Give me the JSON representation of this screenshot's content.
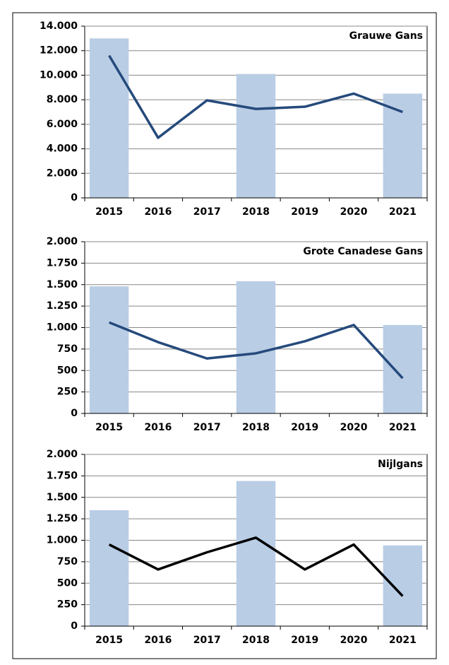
{
  "chart_data": [
    {
      "type": "combo",
      "title": "Grauwe Gans",
      "categories": [
        "2015",
        "2016",
        "2017",
        "2018",
        "2019",
        "2020",
        "2021"
      ],
      "series": [
        {
          "type": "bar",
          "color": "#b9cde5",
          "values": [
            13000,
            null,
            null,
            10100,
            null,
            null,
            8500
          ]
        },
        {
          "type": "line",
          "color": "#254a7c",
          "values": [
            11600,
            4900,
            7950,
            7250,
            7430,
            8500,
            7000
          ]
        }
      ],
      "ylim": [
        0,
        14000
      ],
      "yticks": [
        0,
        {
          "value": 2000,
          "label": "2.000"
        },
        {
          "value": 4000,
          "label": "4.000"
        },
        {
          "value": 6000,
          "label": "6.000"
        },
        {
          "value": 8000,
          "label": "8.000"
        },
        {
          "value": 10000,
          "label": "10.000"
        },
        {
          "value": 12000,
          "label": "12.000"
        },
        {
          "value": 14000,
          "label": "14.000"
        }
      ],
      "grid": true
    },
    {
      "type": "combo",
      "title": "Grote Canadese Gans",
      "categories": [
        "2015",
        "2016",
        "2017",
        "2018",
        "2019",
        "2020",
        "2021"
      ],
      "series": [
        {
          "type": "bar",
          "color": "#b9cde5",
          "values": [
            1480,
            null,
            null,
            1540,
            null,
            null,
            1030
          ]
        },
        {
          "type": "line",
          "color": "#254a7c",
          "values": [
            1060,
            830,
            640,
            700,
            840,
            1030,
            410
          ]
        }
      ],
      "ylim": [
        0,
        2000
      ],
      "yticks": [
        0,
        250,
        500,
        750,
        {
          "value": 1000,
          "label": "1.000"
        },
        {
          "value": 1250,
          "label": "1.250"
        },
        {
          "value": 1500,
          "label": "1.500"
        },
        {
          "value": 1750,
          "label": "1.750"
        },
        {
          "value": 2000,
          "label": "2.000"
        }
      ],
      "grid": true
    },
    {
      "type": "combo",
      "title": "Nijlgans",
      "categories": [
        "2015",
        "2016",
        "2017",
        "2018",
        "2019",
        "2020",
        "2021"
      ],
      "series": [
        {
          "type": "bar",
          "color": "#b9cde5",
          "values": [
            1350,
            null,
            null,
            1690,
            null,
            null,
            940
          ]
        },
        {
          "type": "line",
          "color": "#000000",
          "values": [
            950,
            660,
            860,
            1030,
            660,
            950,
            350
          ]
        }
      ],
      "ylim": [
        0,
        2000
      ],
      "yticks": [
        0,
        250,
        500,
        750,
        {
          "value": 1000,
          "label": "1.000"
        },
        {
          "value": 1250,
          "label": "1.250"
        },
        {
          "value": 1500,
          "label": "1.500"
        },
        {
          "value": 1750,
          "label": "1.750"
        },
        {
          "value": 2000,
          "label": "2.000"
        }
      ],
      "grid": true
    }
  ]
}
